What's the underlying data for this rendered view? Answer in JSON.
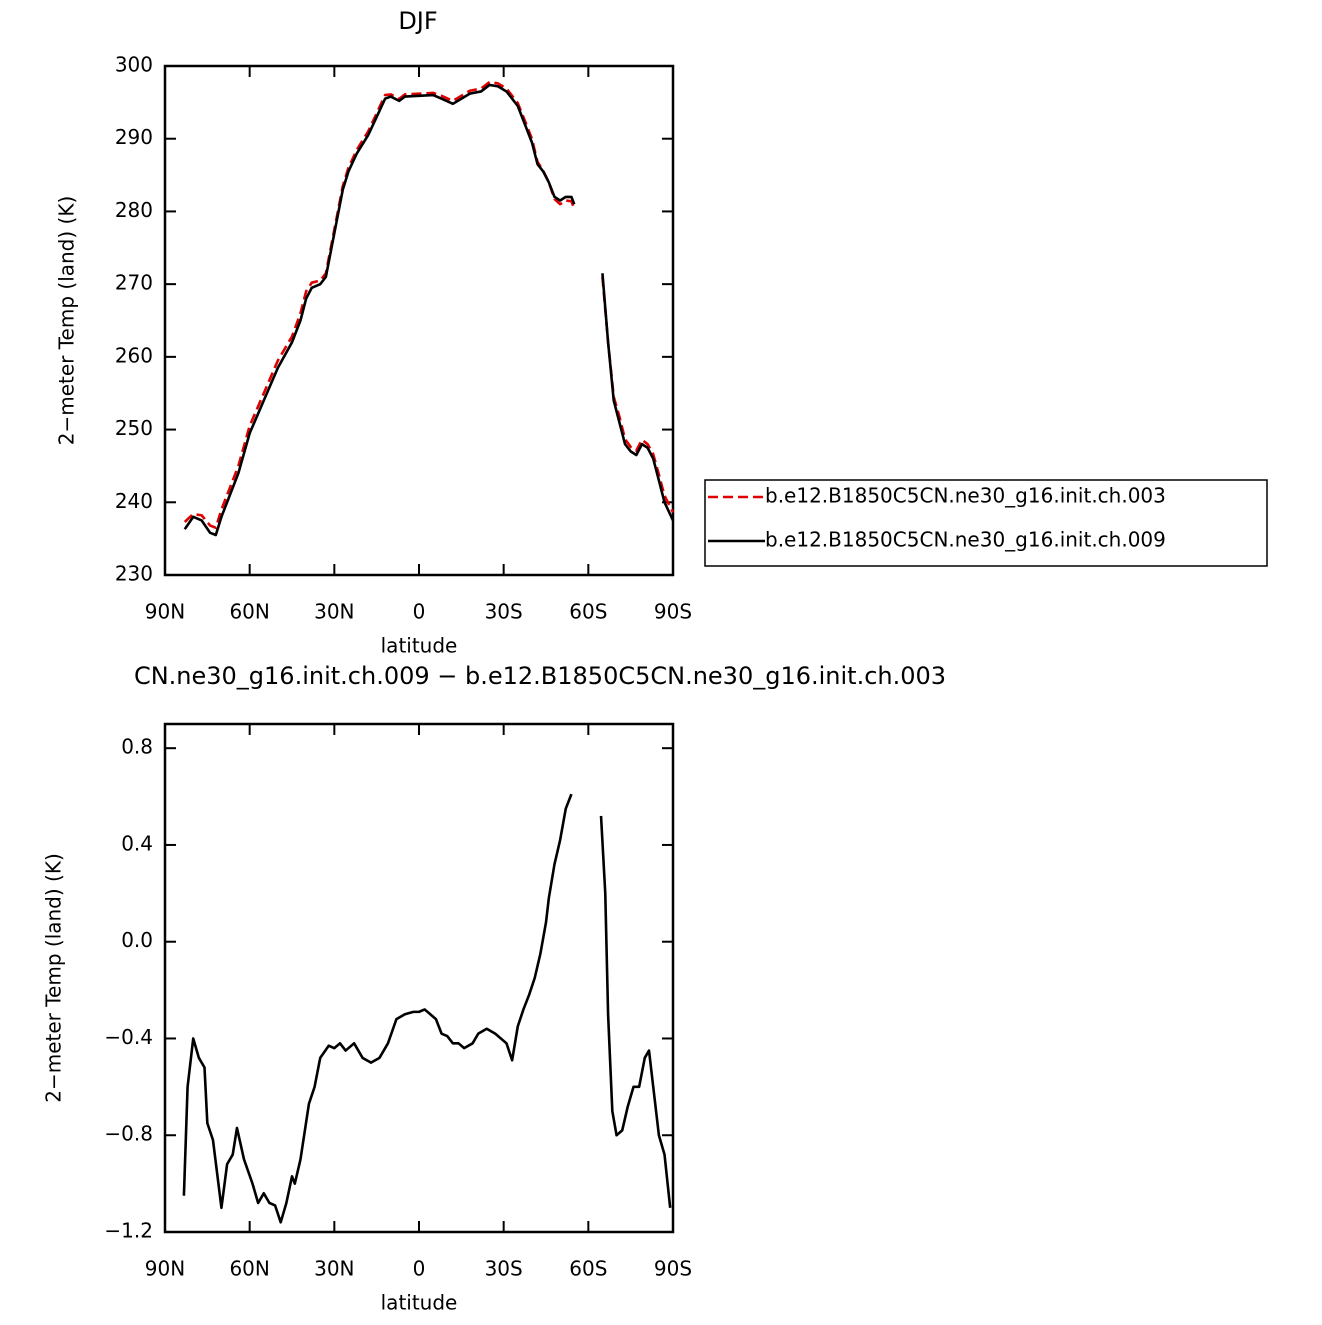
{
  "chart_data": [
    {
      "type": "line",
      "title": "DJF",
      "xlabel": "latitude",
      "ylabel": "2−meter Temp (land) (K)",
      "xlim": [
        90,
        -90
      ],
      "xticks": [
        {
          "value": 90,
          "label": "90N"
        },
        {
          "value": 60,
          "label": "60N"
        },
        {
          "value": 30,
          "label": "30N"
        },
        0,
        {
          "value": -30,
          "label": "30S"
        },
        {
          "value": -60,
          "label": "60S"
        },
        {
          "value": -90,
          "label": "90S"
        }
      ],
      "ylim": [
        230,
        300
      ],
      "yticks": [
        230,
        240,
        250,
        260,
        270,
        280,
        290,
        300
      ],
      "x": [
        83,
        80,
        77,
        74,
        72,
        70,
        67,
        64,
        60,
        55,
        50,
        45,
        42,
        40,
        38,
        35,
        33,
        30,
        27,
        25,
        22,
        18,
        15,
        12,
        10,
        7,
        5,
        0,
        -5,
        -8,
        -12,
        -15,
        -18,
        -22,
        -25,
        -28,
        -31,
        -35,
        -38,
        -40,
        -42,
        -44,
        -46,
        -48,
        -50,
        -52,
        -54,
        -55,
        -60,
        -65,
        -67,
        -69,
        -71,
        -73,
        -75,
        -77,
        -79,
        -81,
        -83,
        -85,
        -87,
        -90
      ],
      "series": [
        {
          "name": "b.e12.B1850C5CN.ne30_g16.init.ch.003",
          "color": "#e00000",
          "dashed": true,
          "values": [
            237.3,
            238.4,
            238.2,
            236.8,
            236.5,
            239,
            242,
            245,
            250.5,
            255,
            259.5,
            262.8,
            266,
            269,
            270.2,
            270.5,
            271.5,
            277.5,
            283.5,
            286,
            288.5,
            291,
            293.5,
            296,
            296.1,
            295.5,
            296.1,
            296.2,
            296.3,
            295.9,
            295.2,
            295.9,
            296.6,
            296.9,
            297.8,
            297.6,
            296.9,
            294.9,
            292,
            290,
            286.8,
            285.6,
            284,
            281.7,
            281,
            281.5,
            281.4,
            280.4,
            null,
            271,
            262,
            254.5,
            251.8,
            248.7,
            247.6,
            247.1,
            248.6,
            248,
            246.6,
            243.8,
            240.9,
            238.6
          ]
        },
        {
          "name": "b.e12.B1850C5CN.ne30_g16.init.ch.009",
          "color": "#000000",
          "dashed": false,
          "values": [
            236.3,
            238,
            237.5,
            235.8,
            235.5,
            238,
            241,
            244,
            249.5,
            254,
            258.5,
            262,
            265,
            268,
            269.5,
            270,
            271,
            277,
            283,
            285.5,
            288,
            290.5,
            293,
            295.5,
            295.8,
            295.2,
            295.8,
            295.9,
            296,
            295.5,
            294.8,
            295.5,
            296.2,
            296.5,
            297.4,
            297.2,
            296.5,
            294.5,
            291.5,
            289.5,
            286.5,
            285.5,
            284,
            282,
            281.5,
            282,
            282,
            281,
            null,
            271.5,
            262,
            254,
            251,
            248,
            247,
            246.5,
            248,
            247.5,
            246,
            243,
            240,
            237.5
          ]
        }
      ]
    },
    {
      "type": "line",
      "title": "CN.ne30_g16.init.ch.009 − b.e12.B1850C5CN.ne30_g16.init.ch.003",
      "xlabel": "latitude",
      "ylabel": "2−meter Temp (land) (K)",
      "xlim": [
        90,
        -90
      ],
      "xticks": [
        {
          "value": 90,
          "label": "90N"
        },
        {
          "value": 60,
          "label": "60N"
        },
        {
          "value": 30,
          "label": "30N"
        },
        0,
        {
          "value": -30,
          "label": "30S"
        },
        {
          "value": -60,
          "label": "60S"
        },
        {
          "value": -90,
          "label": "90S"
        }
      ],
      "ylim": [
        -1.2,
        0.9
      ],
      "yticks": [
        {
          "value": -1.2,
          "label": "−1.2"
        },
        {
          "value": -0.8,
          "label": "−0.8"
        },
        {
          "value": -0.4,
          "label": "−0.4"
        },
        {
          "value": 0,
          "label": "0.0"
        },
        0.4,
        0.8
      ],
      "x": [
        83.3,
        82,
        80,
        78,
        76,
        75,
        73,
        70,
        68,
        66,
        64.5,
        62,
        59,
        57,
        55,
        53,
        51,
        49,
        47,
        45,
        44,
        42,
        39,
        37,
        35,
        32,
        30,
        28,
        26,
        23,
        20,
        17,
        14,
        11,
        8,
        5,
        2,
        0,
        -2,
        -4,
        -6,
        -8,
        -10,
        -12,
        -14,
        -16,
        -19,
        -21,
        -24,
        -27,
        -31,
        -33,
        -35,
        -37,
        -39,
        -41,
        -43,
        -45,
        -46,
        -48,
        -50,
        -52,
        -54,
        -60,
        -64.5,
        -66,
        -67,
        -68.5,
        -70,
        -72,
        -74,
        -76,
        -78,
        -80,
        -81.5,
        -83,
        -85,
        -87,
        -89
      ],
      "series": [
        {
          "color": "#000000",
          "dashed": false,
          "values": [
            -1.05,
            -0.6,
            -0.4,
            -0.48,
            -0.52,
            -0.75,
            -0.82,
            -1.1,
            -0.92,
            -0.88,
            -0.77,
            -0.9,
            -1.0,
            -1.08,
            -1.04,
            -1.08,
            -1.09,
            -1.16,
            -1.08,
            -0.97,
            -1.0,
            -0.9,
            -0.67,
            -0.6,
            -0.48,
            -0.43,
            -0.44,
            -0.42,
            -0.45,
            -0.42,
            -0.48,
            -0.5,
            -0.48,
            -0.42,
            -0.32,
            -0.3,
            -0.29,
            -0.29,
            -0.28,
            -0.3,
            -0.32,
            -0.38,
            -0.39,
            -0.42,
            -0.42,
            -0.44,
            -0.42,
            -0.38,
            -0.36,
            -0.38,
            -0.42,
            -0.49,
            -0.35,
            -0.28,
            -0.22,
            -0.15,
            -0.05,
            0.08,
            0.18,
            0.32,
            0.42,
            0.55,
            0.61,
            null,
            0.52,
            0.2,
            -0.3,
            -0.7,
            -0.8,
            -0.78,
            -0.68,
            -0.6,
            -0.6,
            -0.48,
            -0.45,
            -0.6,
            -0.8,
            -0.88,
            -1.1
          ]
        }
      ]
    }
  ]
}
